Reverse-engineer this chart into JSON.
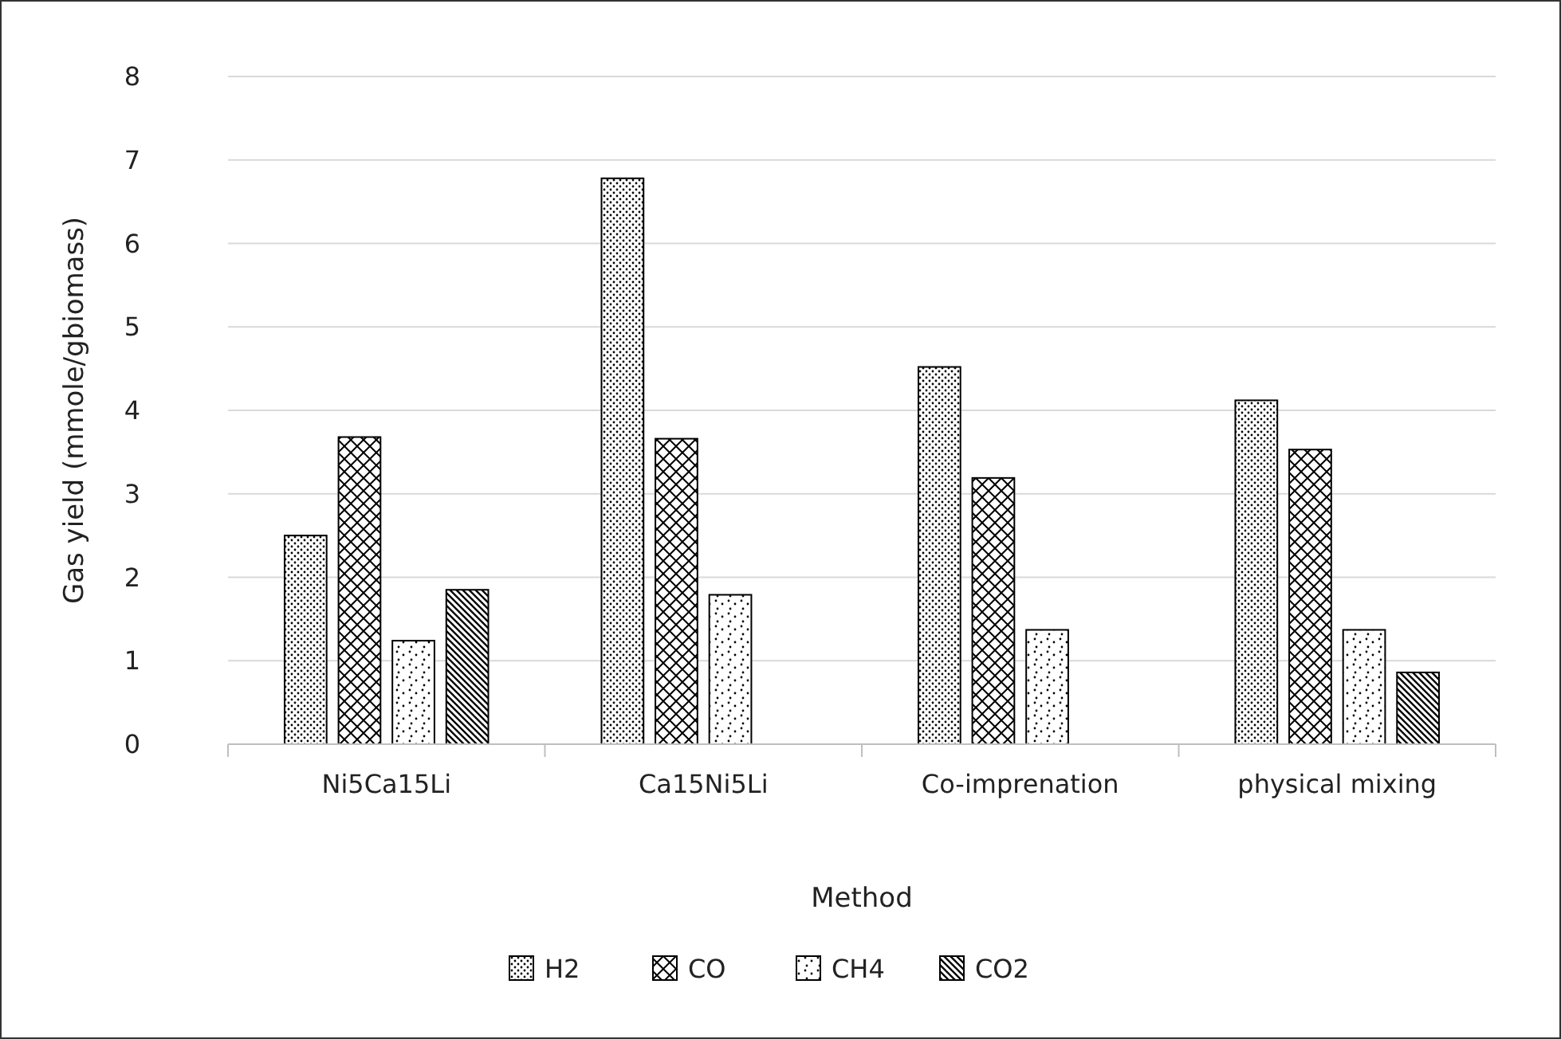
{
  "chart_data": {
    "type": "bar",
    "xlabel": "Method",
    "ylabel": "Gas yield (mmole/gbiomass)",
    "categories": [
      "Ni5Ca15Li",
      "Ca15Ni5Li",
      "Co-imprenation",
      "physical mixing"
    ],
    "series": [
      {
        "name": "H2",
        "color": "#000000",
        "values": [
          2.5,
          6.78,
          4.52,
          4.12
        ]
      },
      {
        "name": "CO",
        "color": "#000000",
        "values": [
          3.68,
          3.66,
          3.19,
          3.53
        ]
      },
      {
        "name": "CH4",
        "color": "#000000",
        "values": [
          1.24,
          1.79,
          1.37,
          1.37
        ]
      },
      {
        "name": "CO2",
        "color": "#000000",
        "values": [
          1.85,
          null,
          null,
          0.86
        ]
      }
    ],
    "ylim": [
      0,
      8
    ],
    "yticks": [
      0,
      1,
      2,
      3,
      4,
      5,
      6,
      7,
      8
    ],
    "grid": "y",
    "legend": "bottom"
  }
}
